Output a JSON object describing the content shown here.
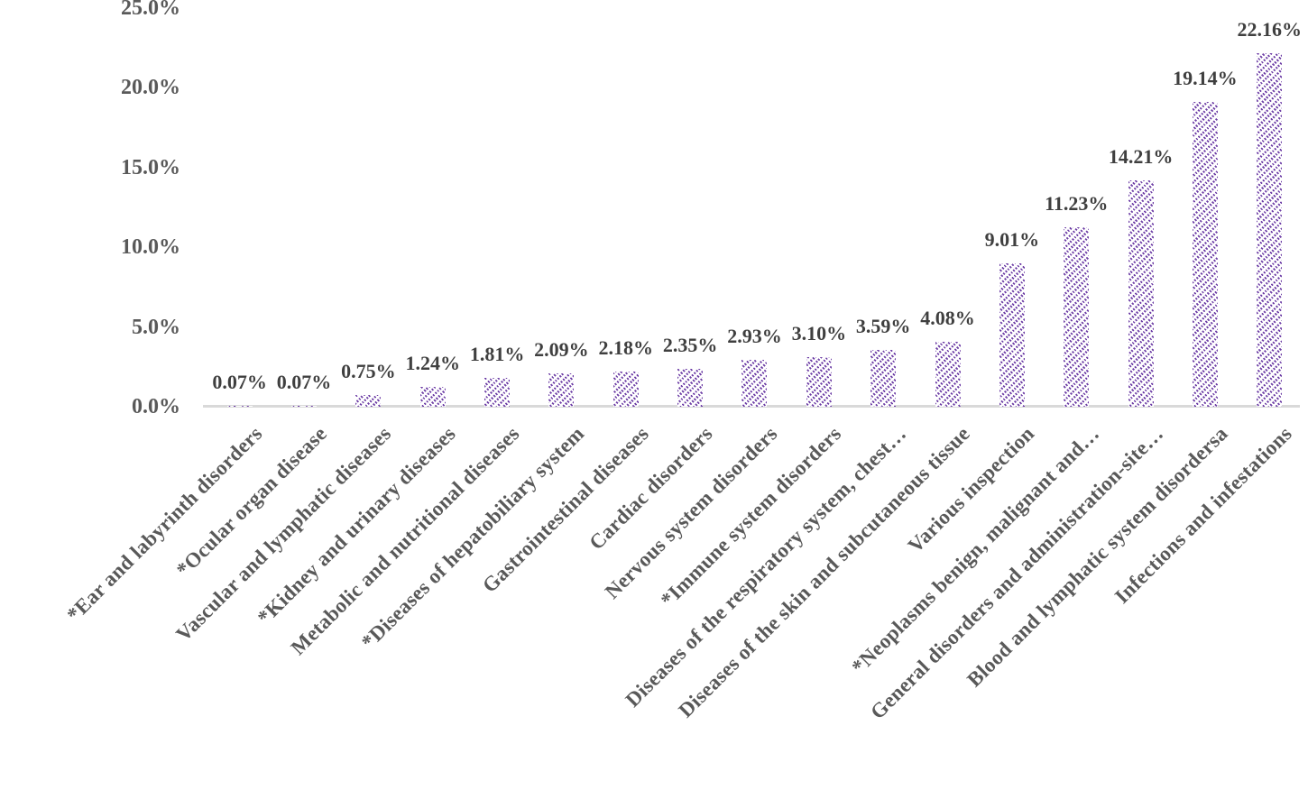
{
  "chart_data": {
    "type": "bar",
    "title": "",
    "xlabel": "",
    "ylabel": "",
    "categories": [
      "*Ear and labyrinth disorders",
      "*Ocular organ disease",
      "Vascular and lymphatic diseases",
      "*Kidney and urinary diseases",
      "Metabolic and nutritional diseases",
      "*Diseases of hepatobiliary system",
      "Gastrointestinal diseases",
      "Cardiac disorders",
      "Nervous system disorders",
      "*Immune system disorders",
      "Diseases of the respiratory system, chest…",
      "Diseases of the skin and subcutaneous tissue",
      "Various inspection",
      "*Neoplasms benign, malignant and…",
      "General disorders and administration-site…",
      "Blood and lymphatic system disordersa",
      "Infections and infestations"
    ],
    "values": [
      0.07,
      0.07,
      0.75,
      1.24,
      1.81,
      2.09,
      2.18,
      2.35,
      2.93,
      3.1,
      3.59,
      4.08,
      9.01,
      11.23,
      14.21,
      19.14,
      22.16
    ],
    "value_labels": [
      "0.07%",
      "0.07%",
      "0.75%",
      "1.24%",
      "1.81%",
      "2.09%",
      "2.18%",
      "2.35%",
      "2.93%",
      "3.10%",
      "3.59%",
      "4.08%",
      "9.01%",
      "11.23%",
      "14.21%",
      "19.14%",
      "22.16%"
    ],
    "y_axis": {
      "ticks": [
        "0.0%",
        "5.0%",
        "10.0%",
        "15.0%",
        "20.0%",
        "25.0%"
      ],
      "tick_values": [
        0,
        5,
        10,
        15,
        20,
        25
      ],
      "range": [
        0,
        25
      ],
      "grid": false
    },
    "legend": "none",
    "bar_fill": {
      "style": "diagonal-dashed-hatch",
      "hatch_color": "#6e3fa6",
      "background_color": "#ffffff"
    },
    "colors": {
      "axis_line": "#d9d9d9",
      "tick_label": "#595959",
      "value_label": "#3f3f3f",
      "category_label": "#595959"
    }
  }
}
